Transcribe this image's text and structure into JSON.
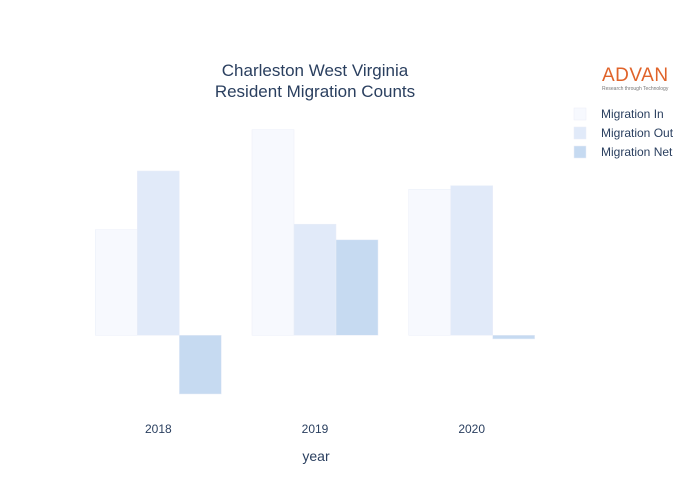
{
  "chart_data": {
    "type": "bar",
    "title_lines": [
      "Charleston West Virginia",
      "Resident Migration Counts"
    ],
    "xlabel": "year",
    "ylabel": "",
    "categories": [
      "2018",
      "2019",
      "2020"
    ],
    "series": [
      {
        "name": "Migration In",
        "values": [
          115,
          224,
          159
        ],
        "color": "#f7f9fe"
      },
      {
        "name": "Migration Out",
        "values": [
          179,
          121,
          163
        ],
        "color": "#e1eaf9"
      },
      {
        "name": "Migration Net",
        "values": [
          -64,
          104,
          -4
        ],
        "color": "#c6daf1"
      }
    ],
    "ylim": [
      -76,
      240
    ],
    "grid": false,
    "legend_position": "top-right"
  },
  "logo": {
    "word": "ADVAN",
    "tagline": "Research through Technology",
    "color": "#e0632a"
  }
}
